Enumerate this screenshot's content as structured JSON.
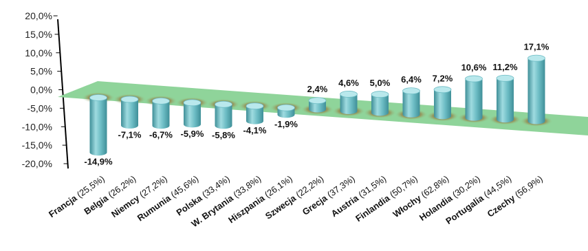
{
  "chart_data": {
    "type": "bar",
    "categories": [
      {
        "name": "Francja",
        "note": "(25,5%)"
      },
      {
        "name": "Belgia",
        "note": "(26,2%)"
      },
      {
        "name": "Niemcy",
        "note": "(27,2%)"
      },
      {
        "name": "Rumunia",
        "note": "(45,6%)"
      },
      {
        "name": "Polska",
        "note": "(33,4%)"
      },
      {
        "name": "W. Brytania",
        "note": "(33,8%)"
      },
      {
        "name": "Hiszpania",
        "note": "(26,1%)"
      },
      {
        "name": "Szwecja",
        "note": "(22,2%)"
      },
      {
        "name": "Grecja",
        "note": "(37,3%)"
      },
      {
        "name": "Austria",
        "note": "(31,5%)"
      },
      {
        "name": "Finlandia",
        "note": "(50,7%)"
      },
      {
        "name": "Włochy",
        "note": "(62,8%)"
      },
      {
        "name": "Holandia",
        "note": "(30,2%)"
      },
      {
        "name": "Portugalia",
        "note": "(44,5%)"
      },
      {
        "name": "Czechy",
        "note": "(56,9%)"
      }
    ],
    "values": [
      -14.9,
      -7.1,
      -6.7,
      -5.9,
      -5.8,
      -4.1,
      -1.9,
      2.4,
      4.6,
      5.0,
      6.4,
      7.2,
      10.6,
      11.2,
      17.1
    ],
    "value_labels": [
      "-14,9%",
      "-7,1%",
      "-6,7%",
      "-5,9%",
      "-5,8%",
      "-4,1%",
      "-1,9%",
      "2,4%",
      "4,6%",
      "5,0%",
      "6,4%",
      "7,2%",
      "10,6%",
      "11,2%",
      "17,1%"
    ],
    "y_ticks": [
      20,
      15,
      10,
      5,
      0,
      -5,
      -10,
      -15,
      -20
    ],
    "y_tick_labels": [
      "20,0%",
      "15,0%",
      "10,0%",
      "5,0%",
      "0,0%",
      "-5,0%",
      "-10,0%",
      "-15,0%",
      "-20,0%"
    ],
    "ylim": [
      -20,
      20
    ],
    "grid": false,
    "legend": "none",
    "style": "3d-cylinder",
    "colors": {
      "bar_light": "#9fdbe0",
      "bar_mid": "#6cbcc4",
      "bar_dark": "#3f8f98",
      "bar_top": "#b9e8ec",
      "floor": "#8fd49a",
      "floor_shadow": "#7a3a10"
    }
  }
}
